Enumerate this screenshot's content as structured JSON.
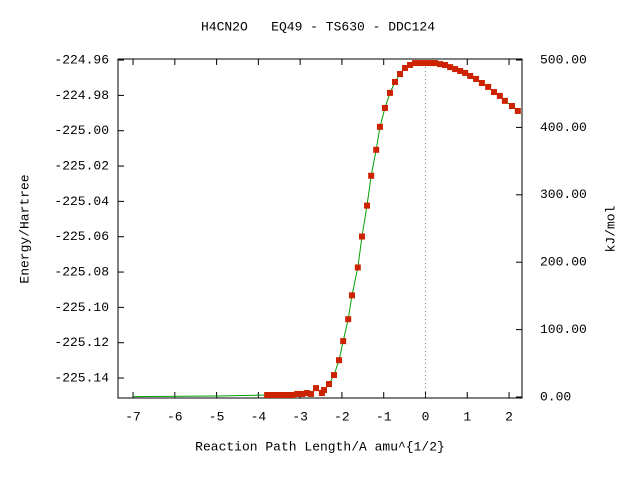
{
  "chart_data": {
    "type": "line",
    "title": "H4CN2O   EQ49 - TS630 - DDC124",
    "x_label": "Reaction Path Length/A amu^{1/2}",
    "y_label": "Energy/Hartree",
    "y2_label": "kJ/mol",
    "xlim": [
      -7.36,
      2.31
    ],
    "ylim": [
      -225.1513,
      -224.9594
    ],
    "y2lim": [
      -1.5,
      501.5
    ],
    "xticks": [
      -7,
      -6,
      -5,
      -4,
      -3,
      -2,
      -1,
      0,
      1,
      2
    ],
    "yticks": [
      -224.96,
      -224.98,
      {
        "value": -225.0,
        "label": "-225.00"
      },
      -225.02,
      -225.04,
      -225.06,
      -225.08,
      {
        "value": -225.1,
        "label": "-225.10"
      },
      -225.12,
      -225.14
    ],
    "y2ticks": [
      {
        "value": 0,
        "label": "0.00"
      },
      {
        "value": 100,
        "label": "100.00"
      },
      {
        "value": 200,
        "label": "200.00"
      },
      {
        "value": 300,
        "label": "300.00"
      },
      {
        "value": 400,
        "label": "400.00"
      },
      {
        "value": 500,
        "label": "500.00"
      }
    ],
    "vline": 0,
    "series": [
      {
        "color": "#00a000",
        "style": "line",
        "x": [
          -7.0,
          -5.0,
          -3.79
        ],
        "values": [
          -225.1505,
          -225.1502,
          -225.1496
        ]
      },
      {
        "color": "#00a000",
        "marker_color": "#cc2200",
        "style": "linespoints",
        "x": [
          -3.79,
          -3.67,
          -3.55,
          -3.43,
          -3.31,
          -3.19,
          -3.07,
          -2.95,
          -2.84,
          -2.74,
          -2.62,
          -2.48,
          -2.43,
          -2.31,
          -2.19,
          -2.07,
          -1.97,
          -1.85,
          -1.76,
          -1.62,
          -1.52,
          -1.4,
          -1.3,
          -1.18,
          -1.09,
          -0.97,
          -0.85,
          -0.73,
          -0.61,
          -0.49,
          -0.37,
          -0.25,
          -0.13,
          -0.01,
          0.11,
          0.23,
          0.35,
          0.47,
          0.59,
          0.71,
          0.83,
          0.95,
          1.07,
          1.21,
          1.35,
          1.5,
          1.64,
          1.78,
          1.9,
          2.07,
          2.21
        ],
        "values": [
          -225.1496,
          -225.1496,
          -225.1496,
          -225.1496,
          -225.1496,
          -225.1496,
          -225.149,
          -225.149,
          -225.1485,
          -225.149,
          -225.1457,
          -225.1485,
          -225.1468,
          -225.1434,
          -225.1383,
          -225.1299,
          -225.1191,
          -225.1067,
          -225.0932,
          -225.0774,
          -225.0599,
          -225.0424,
          -225.0255,
          -225.0108,
          -224.9978,
          -224.9871,
          -224.9786,
          -224.9724,
          -224.9679,
          -224.9645,
          -224.9628,
          -224.9617,
          -224.9617,
          -224.9617,
          -224.9617,
          -224.9617,
          -224.9623,
          -224.9628,
          -224.964,
          -224.9651,
          -224.9662,
          -224.9673,
          -224.969,
          -224.9707,
          -224.973,
          -224.9752,
          -224.9781,
          -224.9803,
          -224.9831,
          -224.986,
          -224.9888
        ]
      }
    ]
  }
}
